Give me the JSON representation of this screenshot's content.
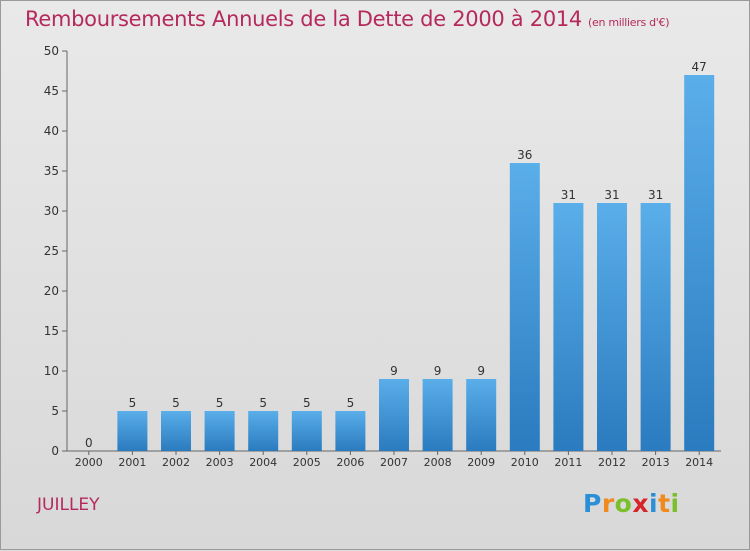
{
  "header": {
    "title": "Remboursements Annuels de la Dette de 2000 à 2014",
    "unit": "(en milliers d'€)"
  },
  "footer": {
    "commune": "JUILLEY",
    "logo": "Proxiti"
  },
  "colors": {
    "title": "#b5295d",
    "bar_top": "#5aaee9",
    "bar_bottom": "#2a7bbf"
  },
  "chart_data": {
    "type": "bar",
    "title": "Remboursements Annuels de la Dette de 2000 à 2014",
    "subtitle": "(en milliers d'€)",
    "xlabel": "",
    "ylabel": "",
    "categories": [
      "2000",
      "2001",
      "2002",
      "2003",
      "2004",
      "2005",
      "2006",
      "2007",
      "2008",
      "2009",
      "2010",
      "2011",
      "2012",
      "2013",
      "2014"
    ],
    "values": [
      0,
      5,
      5,
      5,
      5,
      5,
      5,
      9,
      9,
      9,
      36,
      31,
      31,
      31,
      47
    ],
    "ylim": [
      0,
      50
    ],
    "yticks": [
      0,
      5,
      10,
      15,
      20,
      25,
      30,
      35,
      40,
      45,
      50
    ],
    "grid": false,
    "legend": "none"
  }
}
